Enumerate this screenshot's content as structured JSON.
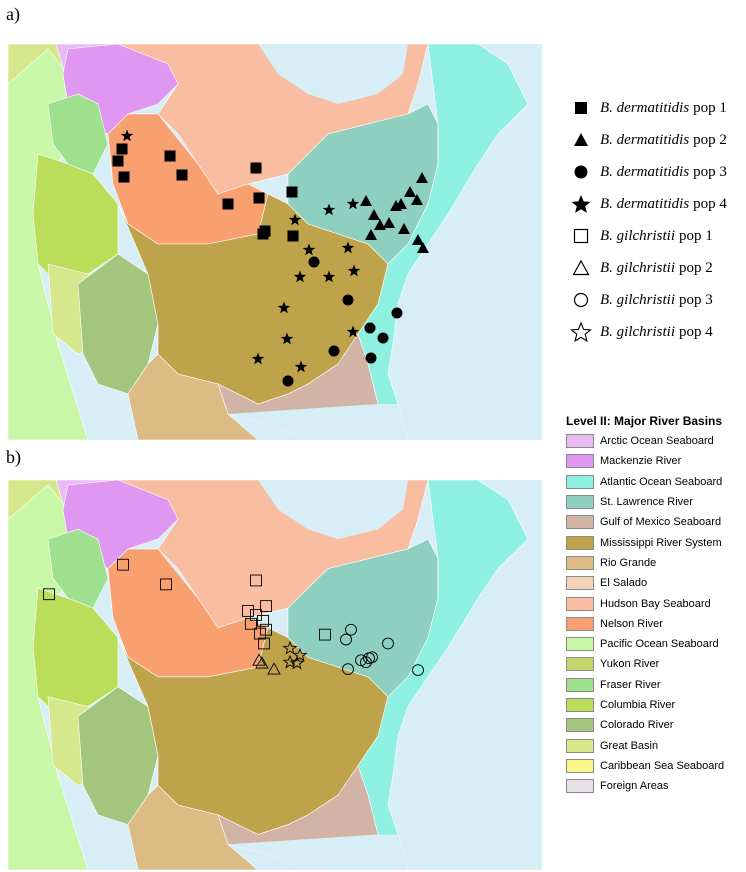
{
  "panels": [
    {
      "label": "a)"
    },
    {
      "label": "b)"
    }
  ],
  "symbol_legend": {
    "items": [
      {
        "species": "B. dermatitidis",
        "pop": "pop 1",
        "shape": "square",
        "fill": "filled"
      },
      {
        "species": "B. dermatitidis",
        "pop": "pop 2",
        "shape": "triangle",
        "fill": "filled"
      },
      {
        "species": "B. dermatitidis",
        "pop": "pop 3",
        "shape": "circle",
        "fill": "filled"
      },
      {
        "species": "B. dermatitidis",
        "pop": "pop 4",
        "shape": "star",
        "fill": "filled"
      },
      {
        "species": "B. gilchristii",
        "pop": "pop 1",
        "shape": "square",
        "fill": "open"
      },
      {
        "species": "B. gilchristii",
        "pop": "pop 2",
        "shape": "triangle",
        "fill": "open"
      },
      {
        "species": "B. gilchristii",
        "pop": "pop 3",
        "shape": "circle",
        "fill": "open"
      },
      {
        "species": "B. gilchristii",
        "pop": "pop 4",
        "shape": "star",
        "fill": "open"
      }
    ]
  },
  "basin_legend": {
    "title": "Level II: Major River Basins",
    "items": [
      {
        "name": "Arctic Ocean Seaboard",
        "color": "#e7bcf5"
      },
      {
        "name": "Mackenzie River",
        "color": "#df97f1"
      },
      {
        "name": "Atlantic Ocean Seaboard",
        "color": "#8ef0e0"
      },
      {
        "name": "St. Lawrence River",
        "color": "#8fcfc0"
      },
      {
        "name": "Gulf of Mexico Seaboard",
        "color": "#d2b4a7"
      },
      {
        "name": "Mississippi River System",
        "color": "#bfa34a"
      },
      {
        "name": "Rio Grande",
        "color": "#dcbb85"
      },
      {
        "name": "El Salado",
        "color": "#f2d4b8"
      },
      {
        "name": "Hudson Bay Seaboard",
        "color": "#f9bea2"
      },
      {
        "name": "Nelson River",
        "color": "#f8a070"
      },
      {
        "name": "Pacific Ocean Seaboard",
        "color": "#c8f7a8"
      },
      {
        "name": "Yukon River",
        "color": "#c3d66d"
      },
      {
        "name": "Fraser River",
        "color": "#9fe08e"
      },
      {
        "name": "Columbia River",
        "color": "#bade5a"
      },
      {
        "name": "Colorado River",
        "color": "#a2c67d"
      },
      {
        "name": "Great Basin",
        "color": "#d7e88c"
      },
      {
        "name": "Caribbean Sea Seaboard",
        "color": "#f9f68a"
      },
      {
        "name": "Foreign Areas",
        "color": "#e6e1e6"
      }
    ]
  },
  "map_colors": {
    "ocean": "#d7eef7",
    "arctic": "#e7bcf5",
    "mackenzie": "#df97f1",
    "atlantic": "#8ef0e0",
    "st_lawrence": "#8fcfc0",
    "gulf": "#d2b4a7",
    "mississippi": "#bfa34a",
    "rio_grande": "#dcbb85",
    "hudson": "#f9bea2",
    "nelson": "#f8a070",
    "pacific": "#c8f7a8",
    "fraser": "#9fe08e",
    "columbia": "#bade5a",
    "colorado": "#a2c67d",
    "great_basin": "#d7e88c"
  }
}
